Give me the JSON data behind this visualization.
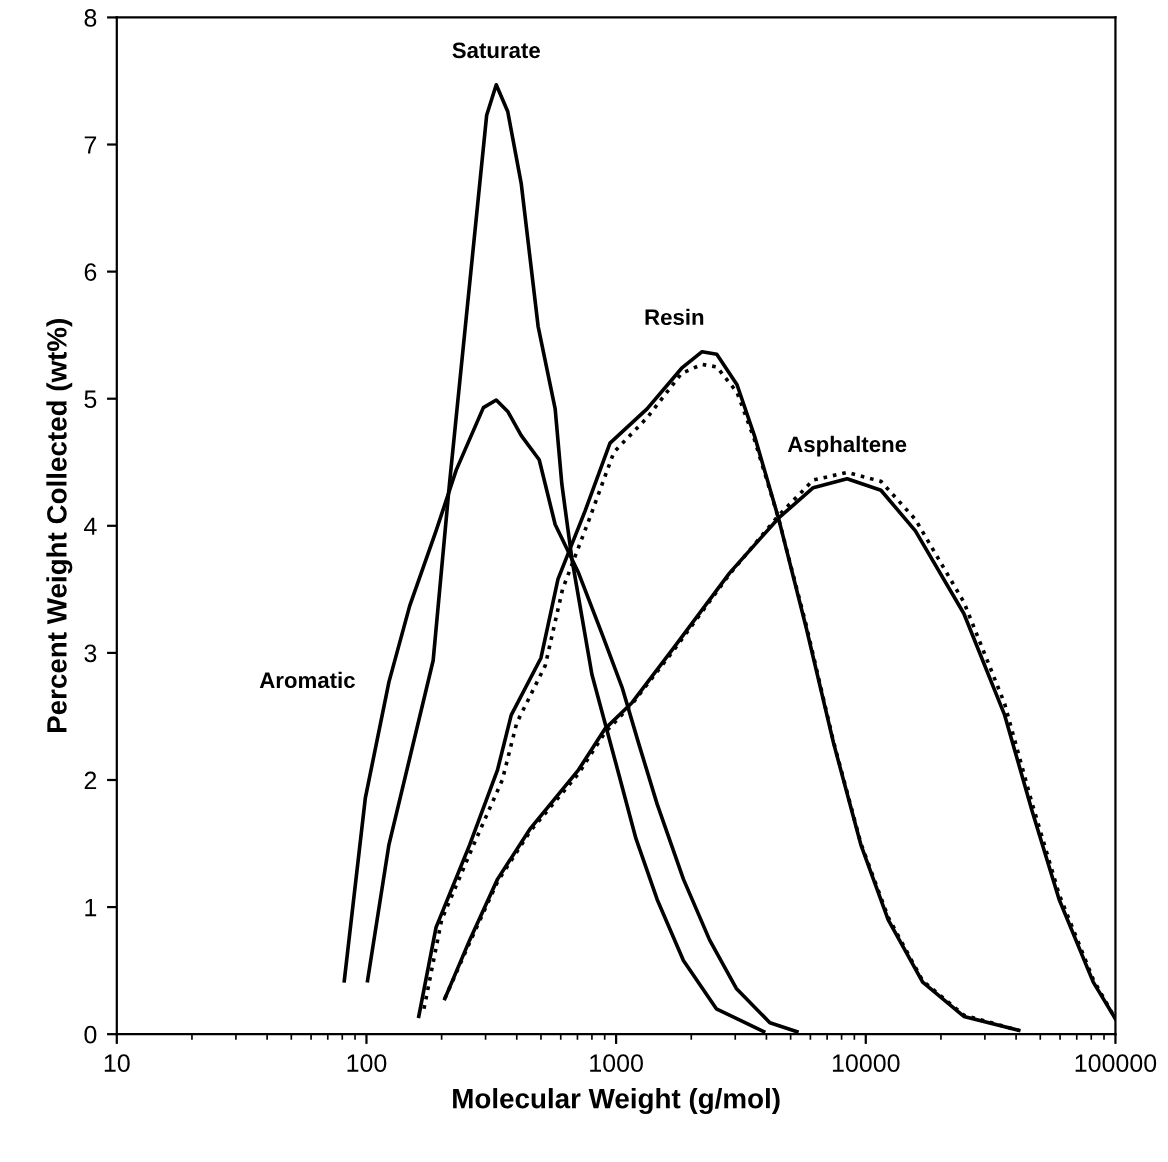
{
  "chart_data": {
    "type": "line",
    "xlabel": "Molecular Weight (g/mol)",
    "ylabel": "Percent Weight Collected (wt%)",
    "log": "x",
    "grid": false,
    "xlim": [
      10,
      100000
    ],
    "xticks": [
      10,
      100,
      1000,
      10000,
      100000
    ],
    "ylim": [
      0,
      8
    ],
    "yticks": [
      0,
      1,
      2,
      3,
      4,
      5,
      6,
      7,
      8
    ],
    "series": [
      {
        "color": "#000000",
        "line_style": "solid",
        "x": [
          101,
          123,
          185,
          215,
          303,
          331,
          368,
          417,
          487,
          570,
          606,
          665,
          800,
          1030,
          1200,
          1460,
          1860,
          2520,
          3900
        ],
        "values": [
          0.42,
          1.49,
          2.94,
          4.33,
          7.23,
          7.47,
          7.26,
          6.69,
          5.57,
          4.92,
          4.33,
          3.74,
          2.83,
          2.03,
          1.54,
          1.06,
          0.58,
          0.2,
          0.02
        ]
      },
      {
        "color": "#000000",
        "line_style": "solid",
        "x": [
          81.5,
          99,
          123,
          149,
          190,
          229,
          294,
          331,
          368,
          417,
          492,
          570,
          707,
          878,
          1060,
          1230,
          1460,
          1860,
          2370,
          3030,
          4130,
          5300
        ],
        "values": [
          0.42,
          1.86,
          2.77,
          3.37,
          3.96,
          4.44,
          4.93,
          4.99,
          4.9,
          4.71,
          4.52,
          4.01,
          3.63,
          3.15,
          2.72,
          2.29,
          1.81,
          1.22,
          0.74,
          0.36,
          0.09,
          0.02
        ]
      },
      {
        "color": "#000000",
        "line_style": "solid",
        "x": [
          162,
          190,
          259,
          335,
          380,
          500,
          585,
          752,
          945,
          1330,
          1830,
          2210,
          2530,
          3050,
          3580,
          4470,
          5770,
          7430,
          9560,
          12300,
          16900,
          24700,
          41000
        ],
        "values": [
          0.14,
          0.84,
          1.49,
          2.08,
          2.51,
          2.96,
          3.58,
          4.12,
          4.65,
          4.92,
          5.24,
          5.37,
          5.35,
          5.11,
          4.71,
          4.06,
          3.2,
          2.29,
          1.49,
          0.9,
          0.41,
          0.14,
          0.03
        ]
      },
      {
        "color": "#000000",
        "line_style": "dotted",
        "x": [
          170,
          200,
          270,
          350,
          400,
          520,
          610,
          780,
          980,
          1330,
          1830,
          2210,
          2530,
          3050,
          3580,
          4470,
          5770,
          7430,
          9560,
          12300,
          16900,
          24700,
          41000
        ],
        "values": [
          0.2,
          0.9,
          1.5,
          2.0,
          2.45,
          2.9,
          3.5,
          4.05,
          4.58,
          4.85,
          5.2,
          5.27,
          5.25,
          5.05,
          4.68,
          4.06,
          3.22,
          2.3,
          1.5,
          0.92,
          0.42,
          0.15,
          0.03
        ]
      },
      {
        "color": "#000000",
        "line_style": "solid",
        "x": [
          206,
          259,
          335,
          454,
          707,
          900,
          1160,
          1700,
          2850,
          4470,
          6160,
          8420,
          11500,
          15800,
          24700,
          36000,
          46300,
          59500,
          81500,
          100000
        ],
        "values": [
          0.28,
          0.74,
          1.22,
          1.62,
          2.08,
          2.4,
          2.61,
          3.04,
          3.63,
          4.06,
          4.3,
          4.37,
          4.28,
          3.96,
          3.31,
          2.51,
          1.76,
          1.06,
          0.41,
          0.12
        ]
      },
      {
        "color": "#000000",
        "line_style": "dotted",
        "x": [
          206,
          259,
          335,
          454,
          707,
          900,
          1160,
          1700,
          2850,
          4470,
          6160,
          8420,
          11500,
          15800,
          24700,
          36000,
          46300,
          59500,
          81500,
          100000
        ],
        "values": [
          0.28,
          0.72,
          1.2,
          1.6,
          2.05,
          2.37,
          2.6,
          3.02,
          3.62,
          4.08,
          4.36,
          4.42,
          4.35,
          4.05,
          3.4,
          2.6,
          1.82,
          1.1,
          0.43,
          0.12
        ]
      }
    ],
    "annotations": [
      {
        "text": "Saturate",
        "x": 331,
        "y": 7.47
      },
      {
        "text": "Aromatic",
        "x": 123,
        "y": 2.77
      },
      {
        "text": "Resin",
        "x": 2210,
        "y": 5.37
      },
      {
        "text": "Asphaltene",
        "x": 8420,
        "y": 4.37
      }
    ]
  }
}
